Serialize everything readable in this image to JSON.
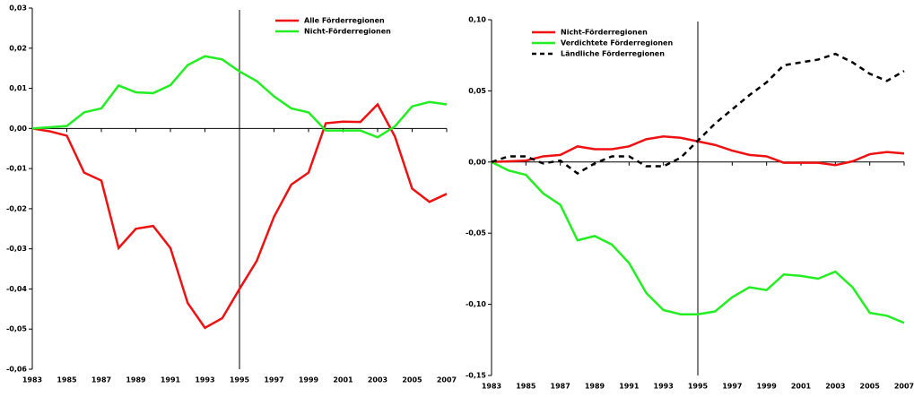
{
  "chart_data": [
    {
      "type": "line",
      "legend": "upper center",
      "vline": 1995,
      "x": [
        1983,
        1984,
        1985,
        1986,
        1987,
        1988,
        1989,
        1990,
        1991,
        1992,
        1993,
        1994,
        1995,
        1996,
        1997,
        1998,
        1999,
        2000,
        2001,
        2002,
        2003,
        2004,
        2005,
        2006,
        2007
      ],
      "xlim": [
        1983,
        2007
      ],
      "xticks": [
        1983,
        1985,
        1987,
        1989,
        1991,
        1993,
        1995,
        1997,
        1999,
        2001,
        2003,
        2005,
        2007
      ],
      "ylim": [
        -0.06,
        0.03
      ],
      "yticks": [
        {
          "value": -0.06,
          "label": "-0,06"
        },
        {
          "value": -0.05,
          "label": "-0,05"
        },
        {
          "value": -0.04,
          "label": "-0,04"
        },
        {
          "value": -0.03,
          "label": "-0,03"
        },
        {
          "value": -0.02,
          "label": "-0,02"
        },
        {
          "value": -0.01,
          "label": "-0,01"
        },
        {
          "value": 0,
          "label": "0,00"
        },
        {
          "value": 0.01,
          "label": "0,01"
        },
        {
          "value": 0.02,
          "label": "0,02"
        },
        {
          "value": 0.03,
          "label": "0,03"
        }
      ],
      "series": [
        {
          "name": "Alle Förderregionen",
          "color": "#ee1111",
          "values": [
            0,
            -0.0007,
            -0.0018,
            -0.011,
            -0.013,
            -0.0298,
            -0.025,
            -0.0243,
            -0.0298,
            -0.0435,
            -0.0497,
            -0.0473,
            -0.04,
            -0.033,
            -0.022,
            -0.014,
            -0.011,
            0.0013,
            0.0017,
            0.0016,
            0.006,
            -0.002,
            -0.015,
            -0.0183,
            -0.0163
          ]
        },
        {
          "name": "Nicht-Förderregionen",
          "color": "#22ee22",
          "values": [
            0,
            0.0003,
            0.0006,
            0.004,
            0.005,
            0.0107,
            0.009,
            0.0088,
            0.0108,
            0.0158,
            0.018,
            0.0172,
            0.0142,
            0.0118,
            0.008,
            0.005,
            0.004,
            -0.0005,
            -0.0005,
            -0.0005,
            -0.0022,
            0.0005,
            0.0055,
            0.0066,
            0.006
          ]
        }
      ]
    },
    {
      "type": "line",
      "legend": "upper left",
      "vline": 1995,
      "x": [
        1983,
        1984,
        1985,
        1986,
        1987,
        1988,
        1989,
        1990,
        1991,
        1992,
        1993,
        1994,
        1995,
        1996,
        1997,
        1998,
        1999,
        2000,
        2001,
        2002,
        2003,
        2004,
        2005,
        2006,
        2007
      ],
      "xlim": [
        1983,
        2007
      ],
      "xticks": [
        1983,
        1985,
        1987,
        1989,
        1991,
        1993,
        1995,
        1997,
        1999,
        2001,
        2003,
        2005,
        2007
      ],
      "ylim": [
        -0.15,
        0.1
      ],
      "yticks": [
        {
          "value": -0.15,
          "label": "-0,15"
        },
        {
          "value": -0.1,
          "label": "-0,10"
        },
        {
          "value": -0.05,
          "label": "-0,05"
        },
        {
          "value": 0,
          "label": "0,00"
        },
        {
          "value": 0.05,
          "label": "0,05"
        },
        {
          "value": 0.1,
          "label": "0,10"
        }
      ],
      "series": [
        {
          "name": "Nicht-Förderregionen",
          "color": "#ee1111",
          "values": [
            0,
            0.0005,
            0.001,
            0.004,
            0.005,
            0.011,
            0.009,
            0.009,
            0.011,
            0.016,
            0.018,
            0.017,
            0.0145,
            0.012,
            0.008,
            0.005,
            0.004,
            -0.0005,
            -0.0005,
            -0.0005,
            -0.0022,
            0.0005,
            0.0055,
            0.007,
            0.006
          ]
        },
        {
          "name": "Verdichtete Förderregionen",
          "color": "#22ee22",
          "values": [
            0,
            -0.006,
            -0.009,
            -0.022,
            -0.03,
            -0.055,
            -0.052,
            -0.058,
            -0.071,
            -0.092,
            -0.104,
            -0.107,
            -0.107,
            -0.105,
            -0.095,
            -0.088,
            -0.09,
            -0.079,
            -0.08,
            -0.082,
            -0.077,
            -0.088,
            -0.106,
            -0.108,
            -0.113
          ]
        },
        {
          "name": "Ländliche Förderregionen",
          "color": "#000000",
          "dashed": true,
          "values": [
            0,
            0.004,
            0.004,
            -0.001,
            0.001,
            -0.008,
            -0.001,
            0.004,
            0.004,
            -0.003,
            -0.003,
            0.003,
            0.015,
            0.027,
            0.037,
            0.047,
            0.056,
            0.068,
            0.07,
            0.072,
            0.076,
            0.07,
            0.062,
            0.057,
            0.064
          ]
        }
      ]
    }
  ]
}
